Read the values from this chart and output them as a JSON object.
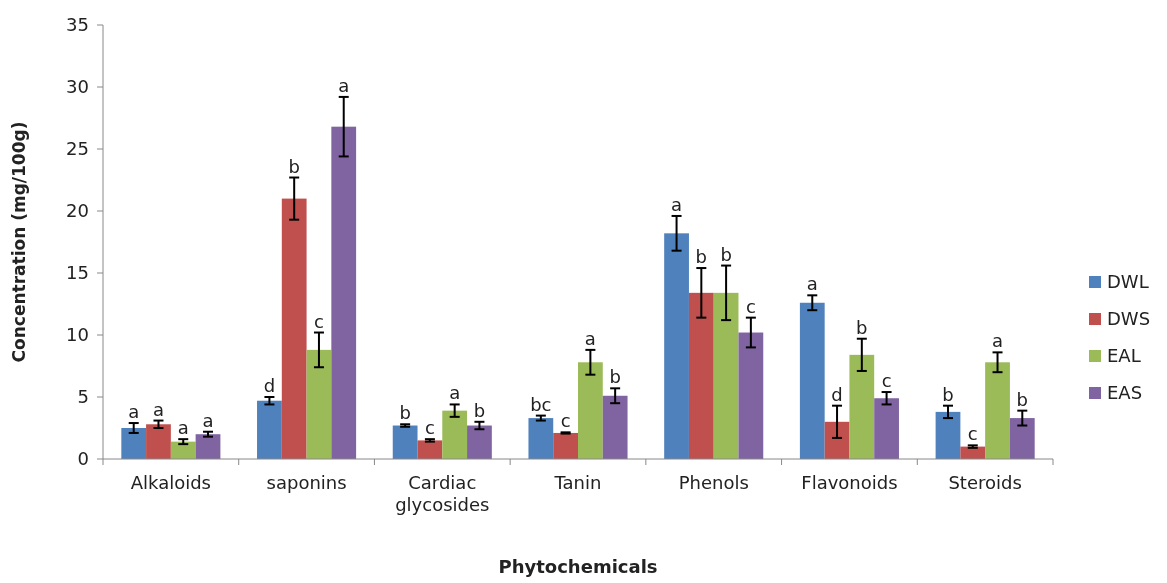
{
  "chart_data": {
    "type": "bar",
    "xlabel": "Phytochemicals",
    "ylabel": "Concentration (mg/100g)",
    "categories": [
      "Alkaloids",
      "saponins",
      "Cardiac glycosides",
      "Tanin",
      "Phenols",
      "Flavonoids",
      "Steroids"
    ],
    "series": [
      {
        "name": "DWL",
        "color": "#4f81bd",
        "values": [
          2.5,
          4.7,
          2.7,
          3.3,
          18.2,
          12.6,
          3.8
        ],
        "errors": [
          0.4,
          0.3,
          0.1,
          0.2,
          1.4,
          0.6,
          0.5
        ],
        "value_labels": [
          "a",
          "d",
          "b",
          "bc",
          "a",
          "a",
          "b"
        ]
      },
      {
        "name": "DWS",
        "color": "#c0504d",
        "values": [
          2.8,
          21.0,
          1.5,
          2.1,
          13.4,
          3.0,
          1.0
        ],
        "errors": [
          0.3,
          1.7,
          0.1,
          0.05,
          2.0,
          1.3,
          0.1
        ],
        "value_labels": [
          "a",
          "b",
          "c",
          "c",
          "b",
          "d",
          "c"
        ]
      },
      {
        "name": "EAL",
        "color": "#9bbb59",
        "values": [
          1.4,
          8.8,
          3.9,
          7.8,
          13.4,
          8.4,
          7.8
        ],
        "errors": [
          0.2,
          1.4,
          0.5,
          1.0,
          2.2,
          1.3,
          0.8
        ],
        "value_labels": [
          "a",
          "c",
          "a",
          "a",
          "b",
          "b",
          "a"
        ]
      },
      {
        "name": "EAS",
        "color": "#8064a2",
        "values": [
          2.0,
          26.8,
          2.7,
          5.1,
          10.2,
          4.9,
          3.3
        ],
        "errors": [
          0.2,
          2.4,
          0.3,
          0.6,
          1.2,
          0.5,
          0.6
        ],
        "value_labels": [
          "a",
          "a",
          "b",
          "b",
          "c",
          "c",
          "b"
        ]
      }
    ],
    "ylim": [
      0,
      35
    ],
    "yticks": [
      0,
      5,
      10,
      15,
      20,
      25,
      30,
      35
    ],
    "grid": false,
    "legend": "right"
  }
}
